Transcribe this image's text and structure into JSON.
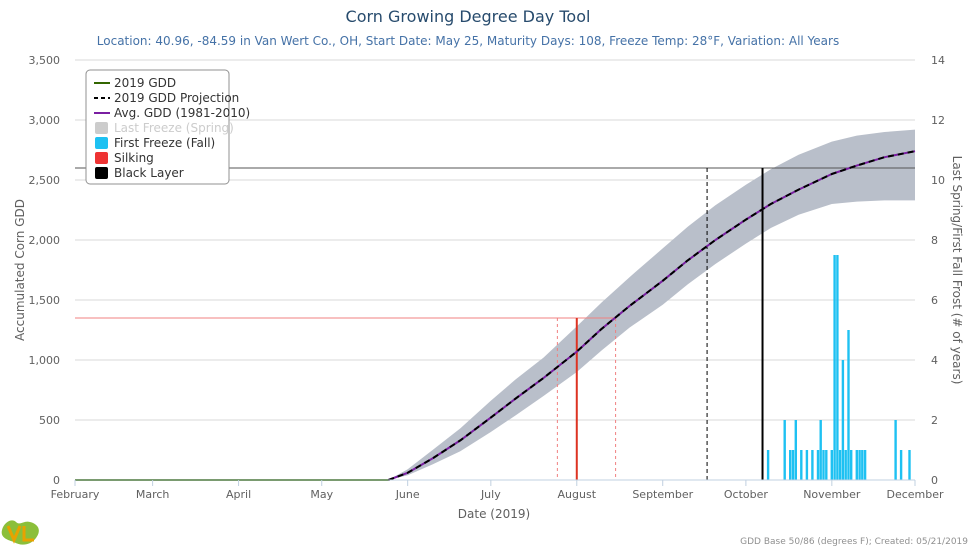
{
  "chart_data": {
    "type": "line",
    "title": "Corn Growing Degree Day Tool",
    "subtitle": "Location: 40.96, -84.59 in Van Wert Co., OH, Start Date: May 25, Maturity Days: 108, Freeze Temp: 28°F, Variation: All Years",
    "xlabel": "Date (2019)",
    "ylabel_left": "Accumulated Corn GDD",
    "ylabel_right": "Last Spring/First Fall Frost (# of years)",
    "x_range": [
      "2019-02-01",
      "2019-12-01"
    ],
    "x_ticks": [
      "February",
      "March",
      "April",
      "May",
      "June",
      "July",
      "August",
      "September",
      "October",
      "November",
      "December"
    ],
    "x_tick_dates": [
      "2019-02-01",
      "2019-03-01",
      "2019-04-01",
      "2019-05-01",
      "2019-06-01",
      "2019-07-01",
      "2019-08-01",
      "2019-09-01",
      "2019-10-01",
      "2019-11-01",
      "2019-12-01"
    ],
    "ylim_left": [
      0,
      3500
    ],
    "y_ticks_left": [
      "0",
      "500",
      "1,000",
      "1,500",
      "2,000",
      "2,500",
      "3,000",
      "3,500"
    ],
    "y_tick_values_left": [
      0,
      500,
      1000,
      1500,
      2000,
      2500,
      3000,
      3500
    ],
    "ylim_right": [
      0,
      14
    ],
    "y_ticks_right": [
      "0",
      "2",
      "4",
      "6",
      "8",
      "10",
      "12",
      "14"
    ],
    "y_tick_values_right": [
      0,
      2,
      4,
      6,
      8,
      10,
      12,
      14
    ],
    "grid": "horizontal",
    "legend_position": "top-left",
    "legend": [
      {
        "label": "2019 GDD",
        "symbol": "line",
        "color": "#336600"
      },
      {
        "label": "2019 GDD Projection",
        "symbol": "dash",
        "color": "#000000"
      },
      {
        "label": "Avg. GDD (1981-2010)",
        "symbol": "line",
        "color": "#7a1fa2"
      },
      {
        "label": "Last Freeze (Spring)",
        "symbol": "box",
        "color": "#cccccc",
        "hidden": true
      },
      {
        "label": "First Freeze (Fall)",
        "symbol": "box",
        "color": "#1ec1f2"
      },
      {
        "label": "Silking",
        "symbol": "box",
        "color": "#ee3333"
      },
      {
        "label": "Black Layer",
        "symbol": "box",
        "color": "#000000"
      }
    ],
    "series": [
      {
        "name": "2019 GDD",
        "color": "#336600",
        "points": [
          [
            "2019-02-01",
            0
          ],
          [
            "2019-05-25",
            0
          ]
        ]
      },
      {
        "name": "Avg. GDD (1981-2010)",
        "color": "#7a1fa2",
        "points": [
          [
            "2019-05-25",
            0
          ],
          [
            "2019-06-01",
            60
          ],
          [
            "2019-06-10",
            180
          ],
          [
            "2019-06-20",
            330
          ],
          [
            "2019-07-01",
            520
          ],
          [
            "2019-07-10",
            680
          ],
          [
            "2019-07-20",
            850
          ],
          [
            "2019-08-01",
            1070
          ],
          [
            "2019-08-10",
            1260
          ],
          [
            "2019-08-20",
            1450
          ],
          [
            "2019-09-01",
            1660
          ],
          [
            "2019-09-10",
            1830
          ],
          [
            "2019-09-20",
            2000
          ],
          [
            "2019-10-01",
            2170
          ],
          [
            "2019-10-10",
            2300
          ],
          [
            "2019-10-20",
            2420
          ],
          [
            "2019-11-01",
            2550
          ],
          [
            "2019-11-10",
            2620
          ],
          [
            "2019-11-20",
            2690
          ],
          [
            "2019-12-01",
            2740
          ]
        ]
      },
      {
        "name": "2019 GDD Projection",
        "color": "#000000",
        "points": [
          [
            "2019-05-25",
            0
          ],
          [
            "2019-06-01",
            60
          ],
          [
            "2019-06-10",
            180
          ],
          [
            "2019-06-20",
            330
          ],
          [
            "2019-07-01",
            520
          ],
          [
            "2019-07-10",
            680
          ],
          [
            "2019-07-20",
            850
          ],
          [
            "2019-08-01",
            1070
          ],
          [
            "2019-08-10",
            1260
          ],
          [
            "2019-08-20",
            1450
          ],
          [
            "2019-09-01",
            1660
          ],
          [
            "2019-09-10",
            1830
          ],
          [
            "2019-09-20",
            2000
          ],
          [
            "2019-10-01",
            2170
          ],
          [
            "2019-10-10",
            2300
          ],
          [
            "2019-10-20",
            2420
          ],
          [
            "2019-11-01",
            2550
          ],
          [
            "2019-11-10",
            2620
          ],
          [
            "2019-11-20",
            2690
          ],
          [
            "2019-12-01",
            2740
          ]
        ]
      }
    ],
    "range_band": {
      "color": "#b9bfca",
      "points": [
        [
          "2019-05-25",
          0,
          0
        ],
        [
          "2019-06-01",
          40,
          90
        ],
        [
          "2019-06-10",
          130,
          250
        ],
        [
          "2019-06-20",
          240,
          430
        ],
        [
          "2019-07-01",
          400,
          660
        ],
        [
          "2019-07-10",
          540,
          840
        ],
        [
          "2019-07-20",
          700,
          1020
        ],
        [
          "2019-08-01",
          900,
          1280
        ],
        [
          "2019-08-10",
          1080,
          1480
        ],
        [
          "2019-08-20",
          1270,
          1690
        ],
        [
          "2019-09-01",
          1460,
          1930
        ],
        [
          "2019-09-10",
          1630,
          2110
        ],
        [
          "2019-09-20",
          1800,
          2290
        ],
        [
          "2019-10-01",
          1970,
          2460
        ],
        [
          "2019-10-10",
          2100,
          2590
        ],
        [
          "2019-10-20",
          2210,
          2710
        ],
        [
          "2019-11-01",
          2300,
          2820
        ],
        [
          "2019-11-10",
          2320,
          2870
        ],
        [
          "2019-11-20",
          2330,
          2900
        ],
        [
          "2019-12-01",
          2330,
          2920
        ]
      ]
    },
    "silking": {
      "gdd": 1350,
      "date": "2019-08-01",
      "range": [
        "2019-07-25",
        "2019-08-15"
      ]
    },
    "black_layer": {
      "gdd": 2600,
      "date": "2019-10-07",
      "early_date": "2019-09-17"
    },
    "first_freeze_fall": {
      "color": "#1ec1f2",
      "bars": [
        [
          "2019-10-09",
          1
        ],
        [
          "2019-10-15",
          2
        ],
        [
          "2019-10-17",
          1
        ],
        [
          "2019-10-18",
          1
        ],
        [
          "2019-10-19",
          2
        ],
        [
          "2019-10-21",
          1
        ],
        [
          "2019-10-23",
          1
        ],
        [
          "2019-10-25",
          1
        ],
        [
          "2019-10-27",
          1
        ],
        [
          "2019-10-28",
          2
        ],
        [
          "2019-10-29",
          1
        ],
        [
          "2019-10-30",
          1
        ],
        [
          "2019-11-01",
          1
        ],
        [
          "2019-11-02",
          7.5
        ],
        [
          "2019-11-03",
          7.5
        ],
        [
          "2019-11-04",
          1
        ],
        [
          "2019-11-05",
          4
        ],
        [
          "2019-11-06",
          1
        ],
        [
          "2019-11-07",
          5
        ],
        [
          "2019-11-08",
          1
        ],
        [
          "2019-11-10",
          1
        ],
        [
          "2019-11-11",
          1
        ],
        [
          "2019-11-12",
          1
        ],
        [
          "2019-11-13",
          1
        ],
        [
          "2019-11-24",
          2
        ],
        [
          "2019-11-26",
          1
        ],
        [
          "2019-11-29",
          1
        ]
      ]
    }
  },
  "credit": "GDD Base 50/86 (degrees F); Created: 05/21/2019"
}
